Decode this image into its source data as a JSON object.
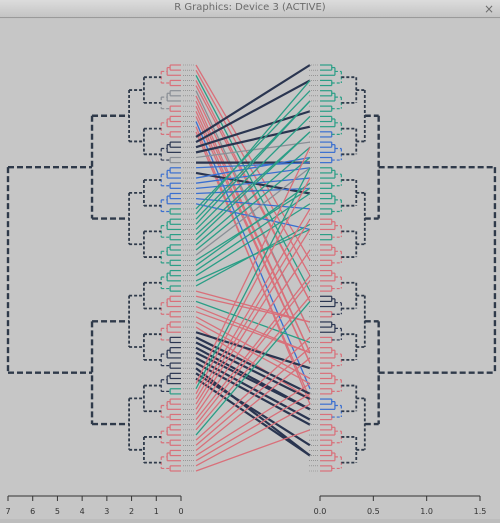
{
  "window": {
    "title": "R Graphics: Device 3 (ACTIVE)",
    "close_glyph": "×"
  },
  "colors": {
    "background": "#c6c6c6",
    "dendro_dark": "#2f3a4a",
    "red": "#d9707a",
    "teal": "#2a9e86",
    "blue": "#3a6fd0",
    "navy": "#2a3550",
    "grey": "#8a8f96"
  },
  "left_axis": {
    "ticks": [
      "7",
      "6",
      "5",
      "4",
      "3",
      "2",
      "1",
      "0"
    ],
    "values": [
      7,
      6,
      5,
      4,
      3,
      2,
      1,
      0
    ]
  },
  "right_axis": {
    "ticks": [
      "0.0",
      "0.5",
      "1.0",
      "1.5"
    ],
    "values": [
      0,
      0.5,
      1,
      1.5
    ]
  }
}
